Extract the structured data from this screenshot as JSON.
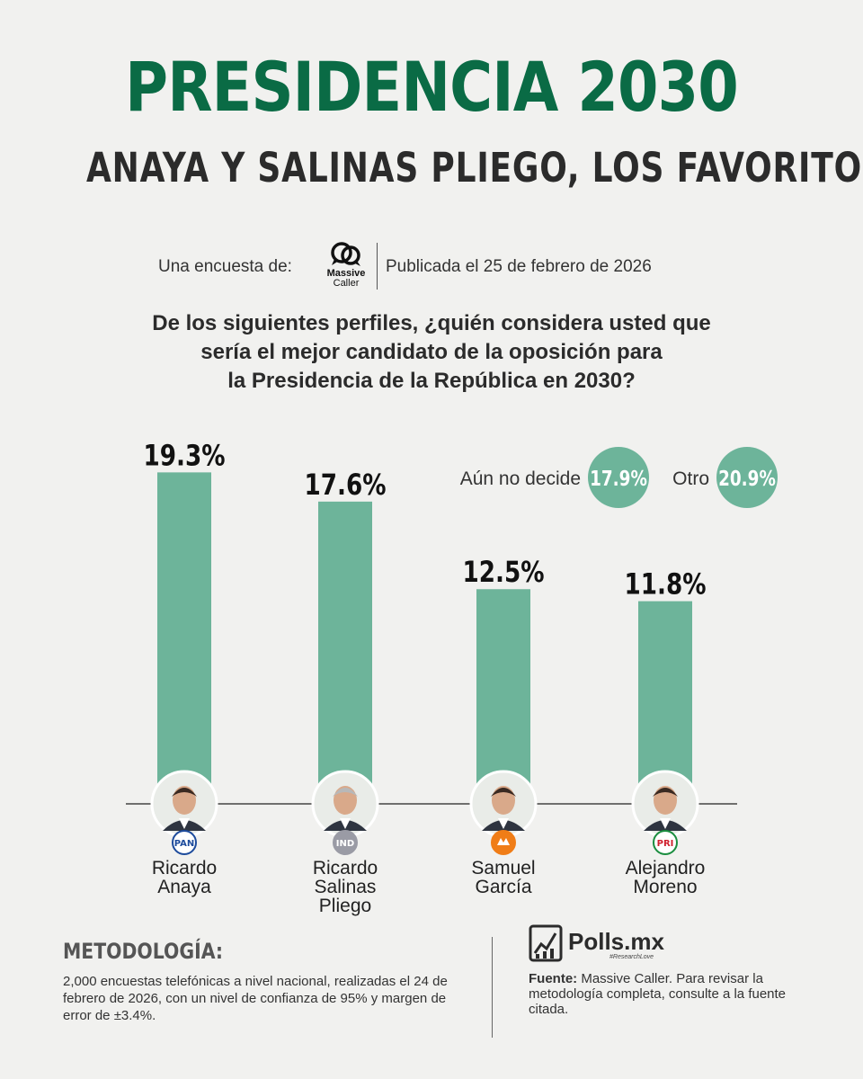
{
  "header": {
    "title": "PRESIDENCIA 2030",
    "subtitle": "ANAYA Y SALINAS PLIEGO, LOS FAVORITOS"
  },
  "byline": {
    "survey_label": "Una encuesta de:",
    "pollster_line1": "Massive",
    "pollster_line2": "Caller",
    "published": "Publicada el 25 de febrero de 2026"
  },
  "question": {
    "line1": "De los siguientes perfiles, ¿quién considera usted que",
    "line2": "sería el mejor candidato de la oposición para",
    "line3": "la Presidencia de la República en 2030?"
  },
  "chart_data": {
    "type": "bar",
    "unit": "%",
    "categories": [
      "Ricardo Anaya",
      "Ricardo Salinas Pliego",
      "Samuel García",
      "Alejandro Moreno"
    ],
    "values": [
      19.3,
      17.6,
      12.5,
      11.8
    ],
    "labels": [
      "19.3%",
      "17.6%",
      "12.5%",
      "11.8%"
    ],
    "name_lines": [
      [
        "Ricardo",
        "Anaya"
      ],
      [
        "Ricardo",
        "Salinas",
        "Pliego"
      ],
      [
        "Samuel",
        "García"
      ],
      [
        "Alejandro",
        "Moreno"
      ]
    ],
    "parties": [
      "PAN",
      "IND",
      "MC",
      "PRI"
    ],
    "extra": [
      {
        "label": "Aún no decide",
        "value": 17.9,
        "display": "17.9%"
      },
      {
        "label": "Otro",
        "value": 20.9,
        "display": "20.9%"
      }
    ],
    "grid": false,
    "colors": {
      "bar": "#6db49a",
      "badge": "#6db49a",
      "baseline": "#444444"
    }
  },
  "methodology": {
    "heading": "METODOLOGÍA:",
    "text": "2,000 encuestas telefónicas a nivel nacional, realizadas el 24 de febrero de 2026, con un nivel de confianza de 95% y margen de error de ±3.4%."
  },
  "brand": {
    "name": "Polls.mx",
    "tagline": "#ResearchLove"
  },
  "source": {
    "label": "Fuente:",
    "text": "Massive Caller. Para revisar la metodología completa, consulte a la fuente citada."
  }
}
